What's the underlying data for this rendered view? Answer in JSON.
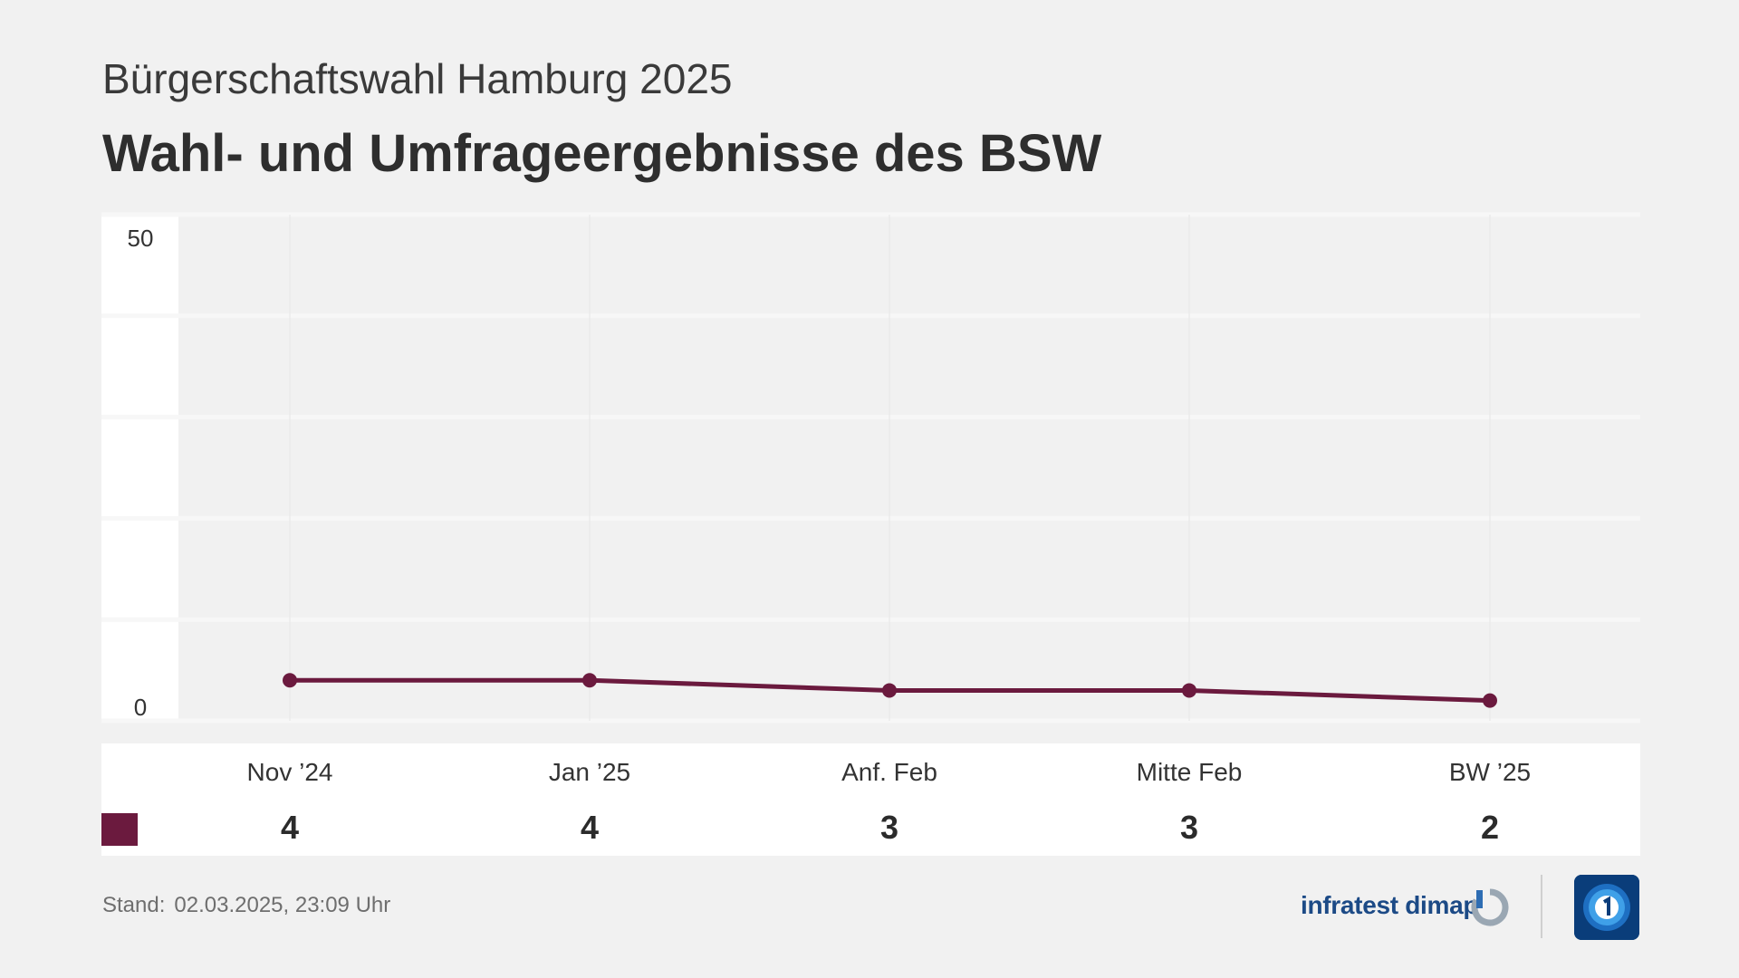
{
  "header": {
    "subtitle": "Bürgerschaftswahl Hamburg 2025",
    "title": "Wahl- und Umfrageergebnisse des BSW"
  },
  "chart_data": {
    "type": "line",
    "title": "Wahl- und Umfrageergebnisse des BSW",
    "categories": [
      "Nov ’24",
      "Jan ’25",
      "Anf. Feb",
      "Mitte Feb",
      "BW ’25"
    ],
    "series": [
      {
        "name": "",
        "values": [
          4,
          4,
          3,
          3,
          2
        ],
        "color": "#6b1a3e"
      }
    ],
    "ylim": [
      0,
      50
    ],
    "y_tick_labels": [
      "50",
      "0"
    ],
    "xlabel": "",
    "ylabel": "",
    "grid": true,
    "legend": "table-below"
  },
  "table": {
    "columns": [
      {
        "label": "Nov ’24",
        "value": "4"
      },
      {
        "label": "Jan ’25",
        "value": "4"
      },
      {
        "label": "Anf. Feb",
        "value": "3"
      },
      {
        "label": "Mitte Feb",
        "value": "3"
      },
      {
        "label": "BW ’25",
        "value": "2"
      }
    ]
  },
  "footer": {
    "stand_label": "Stand:",
    "stand_value": "02.03.2025, 23:09 Uhr",
    "brand_text": "infratest dimap"
  },
  "colors": {
    "series": "#6b1a3e",
    "background": "#f1f1f1",
    "brand": "#1c4a86",
    "ard": "#0a3d7a"
  },
  "icons": {
    "brand_logo": "infratest-dimap-logo-icon",
    "broadcaster_logo": "ard-one-logo-icon"
  }
}
